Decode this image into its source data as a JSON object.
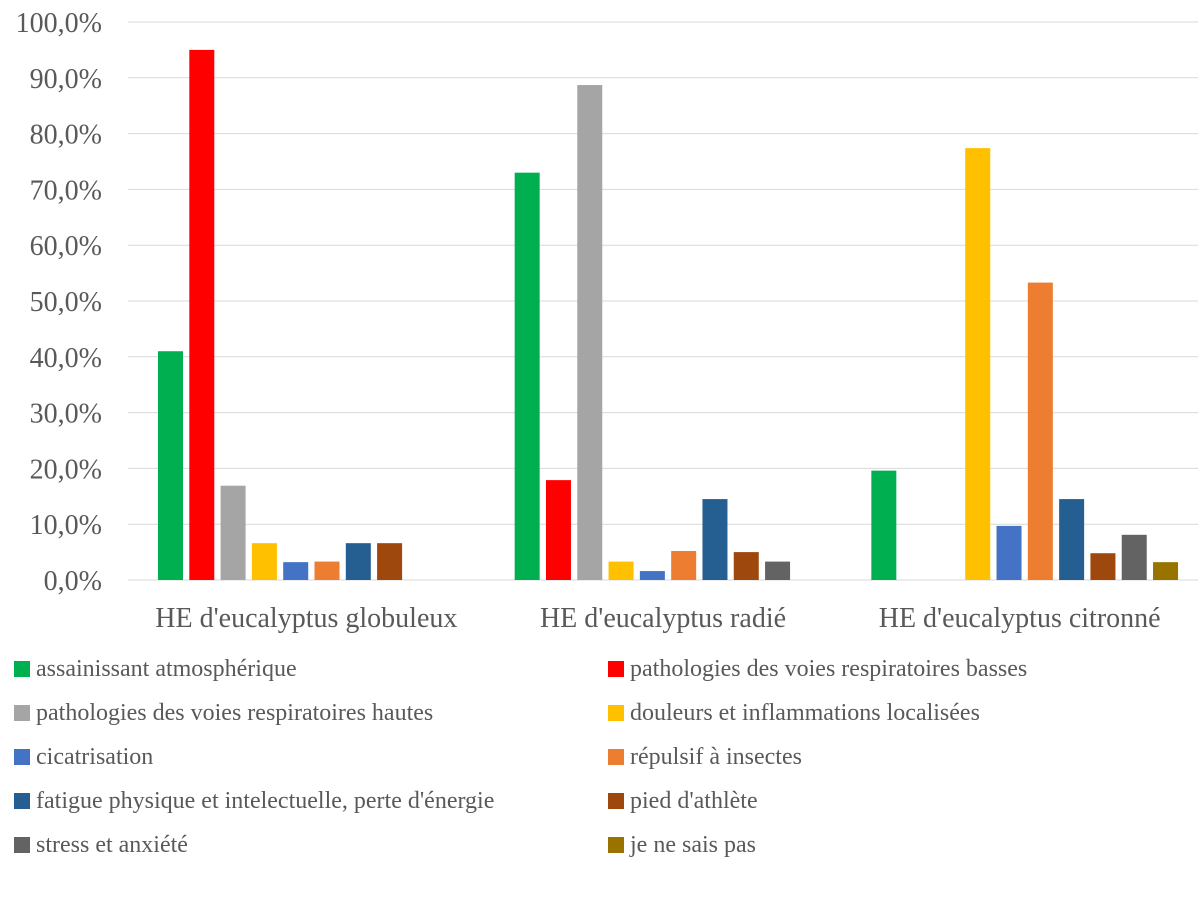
{
  "chart_data": {
    "type": "bar",
    "categories": [
      "HE d'eucalyptus globuleux",
      "HE d'eucalyptus radié",
      "HE d'eucalyptus citronné"
    ],
    "yticks": [
      "0,0%",
      "10,0%",
      "20,0%",
      "30,0%",
      "40,0%",
      "50,0%",
      "60,0%",
      "70,0%",
      "80,0%",
      "90,0%",
      "100,0%"
    ],
    "ylim": [
      0,
      100
    ],
    "grid": true,
    "legend_position": "bottom",
    "series": [
      {
        "name": "assainissant atmosphérique",
        "color": "#00B050",
        "values": [
          41.0,
          73.0,
          19.6
        ]
      },
      {
        "name": "pathologies des voies respiratoires basses",
        "color": "#FF0000",
        "values": [
          95.0,
          17.9,
          0
        ]
      },
      {
        "name": "pathologies des voies respiratoires hautes",
        "color": "#A5A5A5",
        "values": [
          16.9,
          88.7,
          0
        ]
      },
      {
        "name": "douleurs et inflammations localisées",
        "color": "#FFC000",
        "values": [
          6.6,
          3.3,
          77.4
        ]
      },
      {
        "name": "cicatrisation",
        "color": "#4472C4",
        "values": [
          3.2,
          1.6,
          9.7
        ]
      },
      {
        "name": "répulsif à insectes",
        "color": "#ED7D31",
        "values": [
          3.3,
          5.2,
          53.3
        ]
      },
      {
        "name": "fatigue physique et intelectuelle, perte d'énergie",
        "color": "#255E91",
        "values": [
          6.6,
          14.5,
          14.5
        ]
      },
      {
        "name": "pied d'athlète",
        "color": "#9E480E",
        "values": [
          6.6,
          5.0,
          4.8
        ]
      },
      {
        "name": "stress et anxiété",
        "color": "#636363",
        "values": [
          0,
          3.3,
          8.1
        ]
      },
      {
        "name": "je ne sais pas",
        "color": "#997300",
        "values": [
          0,
          0,
          3.2
        ]
      }
    ]
  }
}
